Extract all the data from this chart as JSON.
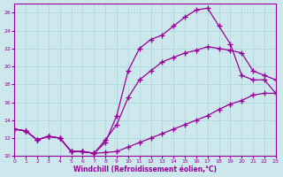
{
  "xlabel": "Windchill (Refroidissement éolien,°C)",
  "bg_color": "#cce8ec",
  "line_color": "#990099",
  "grid_color": "#b0d8dc",
  "xmin": 0,
  "xmax": 23,
  "ymin": 10,
  "ymax": 27,
  "yticks": [
    10,
    12,
    14,
    16,
    18,
    20,
    22,
    24,
    26
  ],
  "xticks": [
    0,
    1,
    2,
    3,
    4,
    5,
    6,
    7,
    8,
    9,
    10,
    11,
    12,
    13,
    14,
    15,
    16,
    17,
    18,
    19,
    20,
    21,
    22,
    23
  ],
  "curve1_x": [
    0,
    1,
    2,
    3,
    4,
    5,
    6,
    7,
    8,
    9,
    10,
    11,
    12,
    13,
    14,
    15,
    16,
    17,
    18,
    19,
    20,
    21,
    22,
    23
  ],
  "curve1_y": [
    13.0,
    12.8,
    11.8,
    12.2,
    12.0,
    10.5,
    10.5,
    10.3,
    10.4,
    10.5,
    11.0,
    11.5,
    12.0,
    12.5,
    13.0,
    13.5,
    14.0,
    14.5,
    15.2,
    15.8,
    16.2,
    16.8,
    17.0,
    17.0
  ],
  "curve2_x": [
    0,
    1,
    2,
    3,
    4,
    5,
    6,
    7,
    8,
    9,
    10,
    11,
    12,
    13,
    14,
    15,
    16,
    17,
    18,
    19,
    20,
    21,
    22,
    23
  ],
  "curve2_y": [
    13.0,
    12.8,
    11.8,
    12.2,
    12.0,
    10.5,
    10.5,
    10.3,
    11.8,
    13.5,
    16.5,
    18.5,
    19.5,
    20.5,
    21.0,
    21.5,
    21.8,
    22.2,
    22.0,
    21.8,
    21.5,
    19.5,
    19.0,
    18.5
  ],
  "curve3_x": [
    0,
    1,
    2,
    3,
    4,
    5,
    6,
    7,
    8,
    9,
    10,
    11,
    12,
    13,
    14,
    15,
    16,
    17,
    18,
    19,
    20,
    21,
    22,
    23
  ],
  "curve3_y": [
    13.0,
    12.8,
    11.8,
    12.2,
    12.0,
    10.5,
    10.5,
    10.3,
    11.5,
    14.5,
    19.5,
    22.0,
    23.0,
    23.5,
    24.5,
    25.5,
    26.3,
    26.5,
    24.5,
    22.5,
    19.0,
    18.5,
    18.5,
    17.0
  ],
  "marker": "+"
}
